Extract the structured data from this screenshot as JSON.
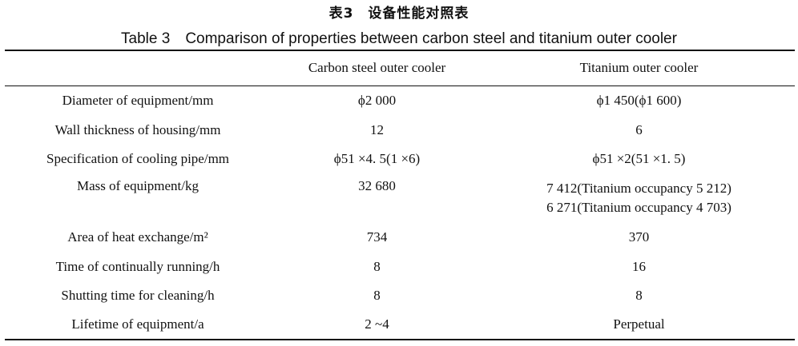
{
  "title_cn": "表3　设备性能对照表",
  "title_en": "Table 3　Comparison of properties between carbon steel and titanium outer cooler",
  "columns": [
    "",
    "Carbon steel outer cooler",
    "Titanium outer cooler"
  ],
  "rows": [
    {
      "label": "Diameter of equipment/mm",
      "carbon": "ϕ2 000",
      "titanium": [
        "ϕ1 450(ϕ1 600)"
      ]
    },
    {
      "label": "Wall thickness of housing/mm",
      "carbon": "12",
      "titanium": [
        "6"
      ]
    },
    {
      "label": "Specification of cooling pipe/mm",
      "carbon": "ϕ51 ×4. 5(1 ×6)",
      "titanium": [
        "ϕ51 ×2(51 ×1. 5)"
      ]
    },
    {
      "label": "Mass of equipment/kg",
      "carbon": "32 680",
      "titanium": [
        "7 412(Titanium occupancy 5 212)",
        "6 271(Titanium occupancy 4 703)"
      ]
    },
    {
      "label": "Area of heat exchange/m²",
      "carbon": "734",
      "titanium": [
        "370"
      ]
    },
    {
      "label": "Time of continually running/h",
      "carbon": "8",
      "titanium": [
        "16"
      ]
    },
    {
      "label": "Shutting time for cleaning/h",
      "carbon": "8",
      "titanium": [
        "8"
      ]
    },
    {
      "label": "Lifetime of equipment/a",
      "carbon": "2 ~4",
      "titanium": [
        "Perpetual"
      ]
    }
  ]
}
